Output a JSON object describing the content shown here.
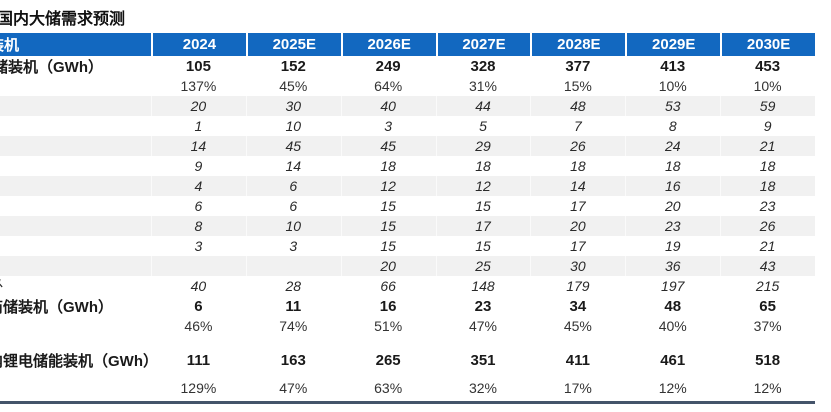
{
  "title": "国内大储需求预测",
  "title_clip": -3,
  "colors": {
    "header_bg": "#1268C0",
    "header_text": "#FFFFFF",
    "stripe_bg": "#F1F1F1",
    "bottom_line": "#44546A"
  },
  "table": {
    "corner_label": "装机",
    "corner_clip": -11,
    "years": [
      "2024",
      "2025E",
      "2026E",
      "2027E",
      "2028E",
      "2029E",
      "2030E"
    ],
    "rows": [
      {
        "label": "储装机（GWh）",
        "label_clip": -7,
        "style": "bold",
        "cells": [
          "105",
          "152",
          "249",
          "328",
          "377",
          "413",
          "453"
        ]
      },
      {
        "label": "",
        "label_clip": 0,
        "style": "pct",
        "cells": [
          "137%",
          "45%",
          "64%",
          "31%",
          "15%",
          "10%",
          "10%"
        ]
      },
      {
        "label": "",
        "label_clip": 0,
        "style": "italic stripe",
        "cells": [
          "20",
          "30",
          "40",
          "44",
          "48",
          "53",
          "59"
        ]
      },
      {
        "label": "",
        "label_clip": 0,
        "style": "italic",
        "cells": [
          "1",
          "10",
          "3",
          "5",
          "7",
          "8",
          "9"
        ]
      },
      {
        "label": "",
        "label_clip": 0,
        "style": "italic stripe",
        "cells": [
          "14",
          "45",
          "45",
          "29",
          "26",
          "24",
          "21"
        ]
      },
      {
        "label": "",
        "label_clip": 0,
        "style": "italic",
        "cells": [
          "9",
          "14",
          "18",
          "18",
          "18",
          "18",
          "18"
        ]
      },
      {
        "label": "",
        "label_clip": 0,
        "style": "italic stripe",
        "cells": [
          "4",
          "6",
          "12",
          "12",
          "14",
          "16",
          "18"
        ]
      },
      {
        "label": "",
        "label_clip": 0,
        "style": "italic",
        "cells": [
          "6",
          "6",
          "15",
          "15",
          "17",
          "20",
          "23"
        ]
      },
      {
        "label": "",
        "label_clip": 0,
        "style": "italic stripe",
        "cells": [
          "8",
          "10",
          "15",
          "17",
          "20",
          "23",
          "26"
        ]
      },
      {
        "label": "",
        "label_clip": 0,
        "style": "italic",
        "cells": [
          "3",
          "3",
          "15",
          "15",
          "17",
          "19",
          "21"
        ]
      },
      {
        "label": "",
        "label_clip": 0,
        "style": "italic stripe",
        "cells": [
          "",
          "",
          "20",
          "25",
          "30",
          "36",
          "43"
        ]
      },
      {
        "label": "外",
        "label_clip": -12,
        "style": "italic",
        "cells": [
          "40",
          "28",
          "66",
          "148",
          "179",
          "197",
          "215"
        ]
      },
      {
        "label": "商储装机（GWh）",
        "label_clip": -12,
        "style": "bold",
        "cells": [
          "6",
          "11",
          "16",
          "23",
          "34",
          "48",
          "65"
        ]
      },
      {
        "label": "",
        "label_clip": 0,
        "style": "pct",
        "cells": [
          "46%",
          "74%",
          "51%",
          "47%",
          "45%",
          "40%",
          "37%"
        ]
      },
      {
        "label": "",
        "label_clip": 0,
        "style": "spacer",
        "cells": []
      },
      {
        "label": "内锂电储能装机（GWh）",
        "label_clip": -12,
        "style": "bold tall",
        "cells": [
          "111",
          "163",
          "265",
          "351",
          "411",
          "461",
          "518"
        ]
      },
      {
        "label": "",
        "label_clip": 0,
        "style": "spacer-sm",
        "cells": []
      },
      {
        "label": "",
        "label_clip": 0,
        "style": "pct",
        "cells": [
          "129%",
          "47%",
          "63%",
          "32%",
          "17%",
          "12%",
          "12%"
        ]
      }
    ]
  }
}
